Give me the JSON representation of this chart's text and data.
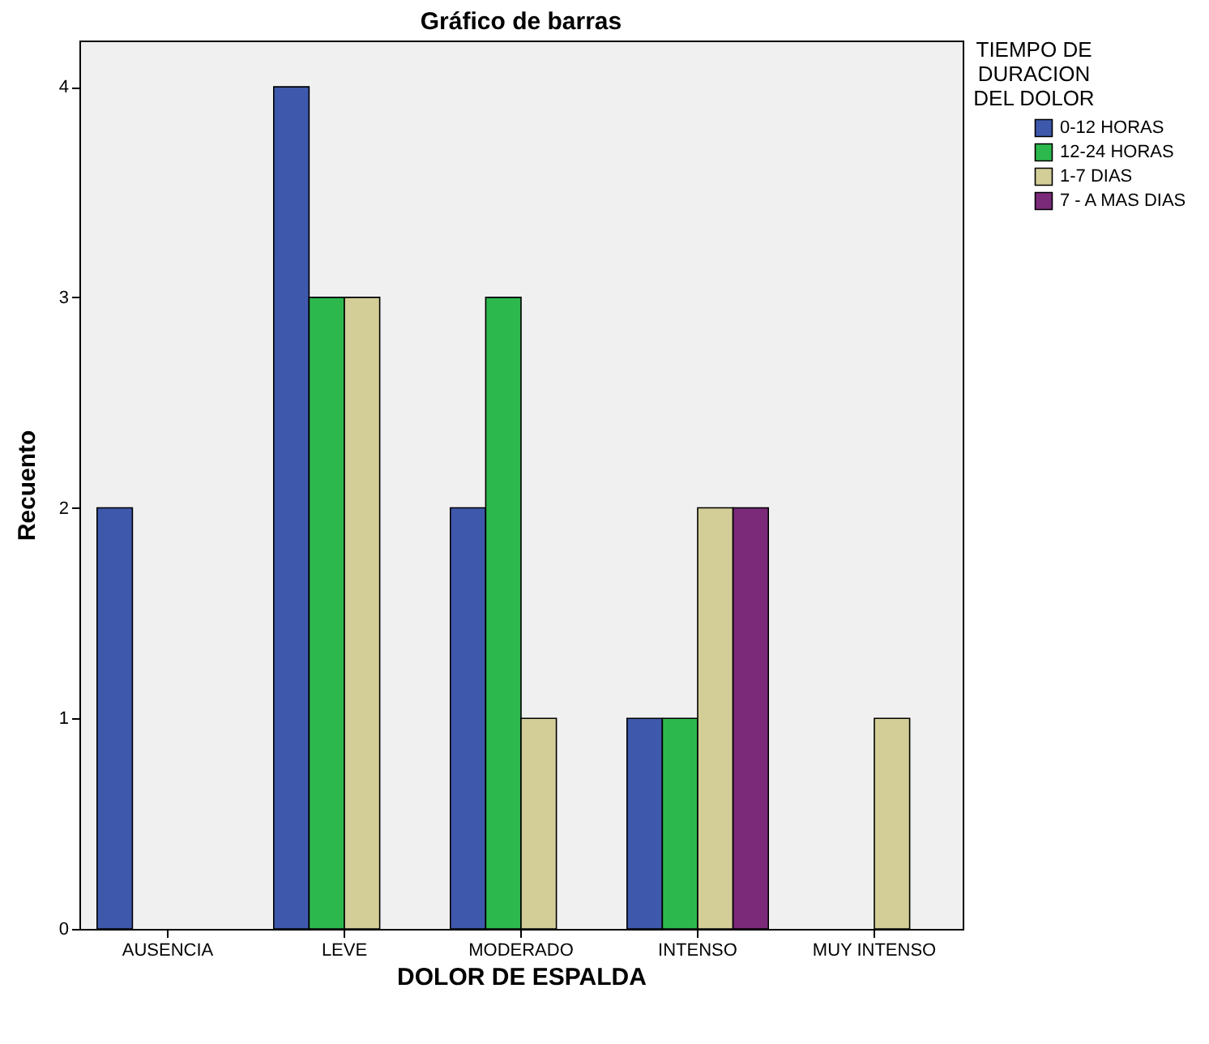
{
  "chart_data": {
    "type": "bar",
    "title": "Gráfico de barras",
    "xlabel": "DOLOR DE ESPALDA",
    "ylabel": "Recuento",
    "legend_title": "TIEMPO DE DURACION DEL DOLOR",
    "categories": [
      "AUSENCIA",
      "LEVE",
      "MODERADO",
      "INTENSO",
      "MUY INTENSO"
    ],
    "series": [
      {
        "name": "0-12 HORAS",
        "color": "#3e58ac",
        "values": [
          2,
          4,
          2,
          1,
          null
        ]
      },
      {
        "name": "12-24 HORAS",
        "color": "#2db84d",
        "values": [
          null,
          3,
          3,
          1,
          null
        ]
      },
      {
        "name": "1-7 DIAS",
        "color": "#d3ce97",
        "values": [
          null,
          3,
          1,
          2,
          1
        ]
      },
      {
        "name": "7 - A MAS DIAS",
        "color": "#7b2a7a",
        "values": [
          null,
          null,
          null,
          2,
          null
        ]
      }
    ],
    "ylim": [
      0,
      4.22
    ],
    "yticks": [
      0,
      1,
      2,
      3,
      4
    ],
    "grid": false,
    "legend": "top right"
  }
}
